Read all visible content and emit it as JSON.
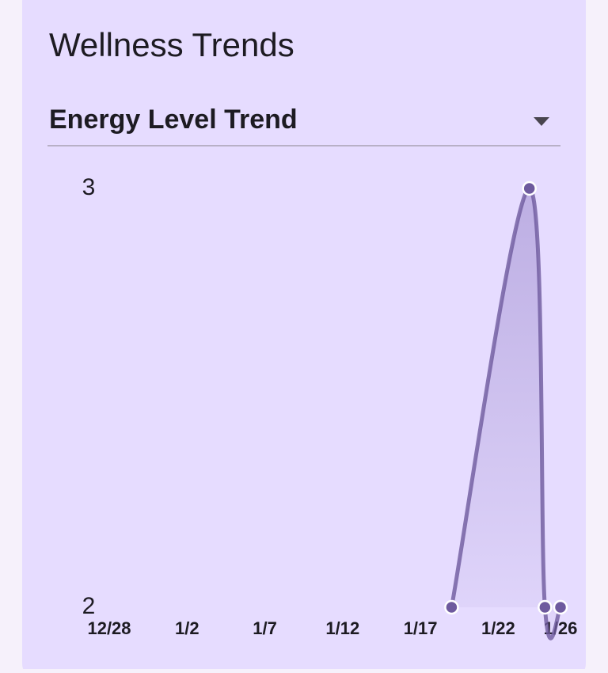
{
  "title": "Wellness Trends",
  "dropdown": "Energy Level Trend",
  "chart_data": {
    "type": "line",
    "x": [
      "1/19",
      "1/24",
      "1/25",
      "1/26"
    ],
    "series": [
      {
        "name": "Energy Level",
        "color": "#6e5a9e",
        "values": [
          2,
          3,
          2,
          2
        ]
      }
    ],
    "xlim": [
      "12/28",
      "1/26"
    ],
    "xticks": [
      "12/28",
      "1/2",
      "1/7",
      "1/12",
      "1/17",
      "1/22",
      "1/26"
    ],
    "ylim": [
      2,
      3
    ],
    "yticks": [
      2,
      3
    ],
    "area": true
  }
}
